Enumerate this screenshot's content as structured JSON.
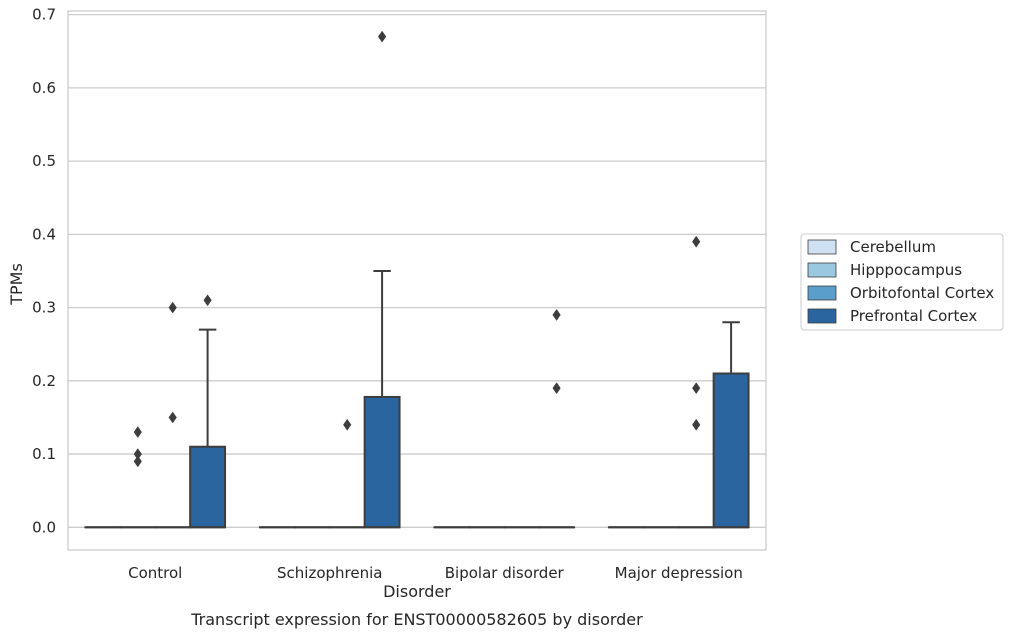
{
  "chart_data": {
    "type": "box",
    "caption": "Transcript expression for ENST00000582605 by disorder",
    "xlabel": "Disorder",
    "ylabel": "TPMs",
    "ylim": [
      -0.031,
      0.705
    ],
    "yticks": [
      0.0,
      0.1,
      0.2,
      0.3,
      0.4,
      0.5,
      0.6,
      0.7
    ],
    "ytick_labels": [
      "0.0",
      "0.1",
      "0.2",
      "0.3",
      "0.4",
      "0.5",
      "0.6",
      "0.7"
    ],
    "grid": "horizontal",
    "legend_position": "right",
    "categories": [
      "Control",
      "Schizophrenia",
      "Bipolar disorder",
      "Major depression"
    ],
    "series": [
      {
        "name": "Cerebellum",
        "color": "#cee0f2",
        "boxes": [
          {
            "q1": 0,
            "median": 0,
            "q3": 0,
            "whisker_low": 0,
            "whisker_high": 0,
            "outliers": []
          },
          {
            "q1": 0,
            "median": 0,
            "q3": 0,
            "whisker_low": 0,
            "whisker_high": 0,
            "outliers": []
          },
          {
            "q1": 0,
            "median": 0,
            "q3": 0,
            "whisker_low": 0,
            "whisker_high": 0,
            "outliers": []
          },
          {
            "q1": 0,
            "median": 0,
            "q3": 0,
            "whisker_low": 0,
            "whisker_high": 0,
            "outliers": []
          }
        ]
      },
      {
        "name": "Hipppocampus",
        "color": "#9ac8e0",
        "boxes": [
          {
            "q1": 0,
            "median": 0,
            "q3": 0,
            "whisker_low": 0,
            "whisker_high": 0,
            "outliers": [
              0.09,
              0.1,
              0.13
            ]
          },
          {
            "q1": 0,
            "median": 0,
            "q3": 0,
            "whisker_low": 0,
            "whisker_high": 0,
            "outliers": []
          },
          {
            "q1": 0,
            "median": 0,
            "q3": 0,
            "whisker_low": 0,
            "whisker_high": 0,
            "outliers": []
          },
          {
            "q1": 0,
            "median": 0,
            "q3": 0,
            "whisker_low": 0,
            "whisker_high": 0,
            "outliers": []
          }
        ]
      },
      {
        "name": "Orbitofontal Cortex",
        "color": "#5a9fcc",
        "boxes": [
          {
            "q1": 0,
            "median": 0,
            "q3": 0,
            "whisker_low": 0,
            "whisker_high": 0,
            "outliers": [
              0.15,
              0.3
            ]
          },
          {
            "q1": 0,
            "median": 0,
            "q3": 0,
            "whisker_low": 0,
            "whisker_high": 0,
            "outliers": [
              0.14
            ]
          },
          {
            "q1": 0,
            "median": 0,
            "q3": 0,
            "whisker_low": 0,
            "whisker_high": 0,
            "outliers": []
          },
          {
            "q1": 0,
            "median": 0,
            "q3": 0,
            "whisker_low": 0,
            "whisker_high": 0,
            "outliers": [
              0.14,
              0.19,
              0.39
            ]
          }
        ]
      },
      {
        "name": "Prefrontal Cortex",
        "color": "#2a65a0",
        "boxes": [
          {
            "q1": 0,
            "median": 0,
            "q3": 0.11,
            "whisker_low": 0,
            "whisker_high": 0.27,
            "outliers": [
              0.31
            ]
          },
          {
            "q1": 0,
            "median": 0,
            "q3": 0.178,
            "whisker_low": 0,
            "whisker_high": 0.35,
            "outliers": [
              0.67
            ]
          },
          {
            "q1": 0,
            "median": 0,
            "q3": 0,
            "whisker_low": 0,
            "whisker_high": 0,
            "outliers": [
              0.19,
              0.29
            ]
          },
          {
            "q1": 0,
            "median": 0,
            "q3": 0.21,
            "whisker_low": 0,
            "whisker_high": 0.28,
            "outliers": []
          }
        ]
      }
    ]
  }
}
